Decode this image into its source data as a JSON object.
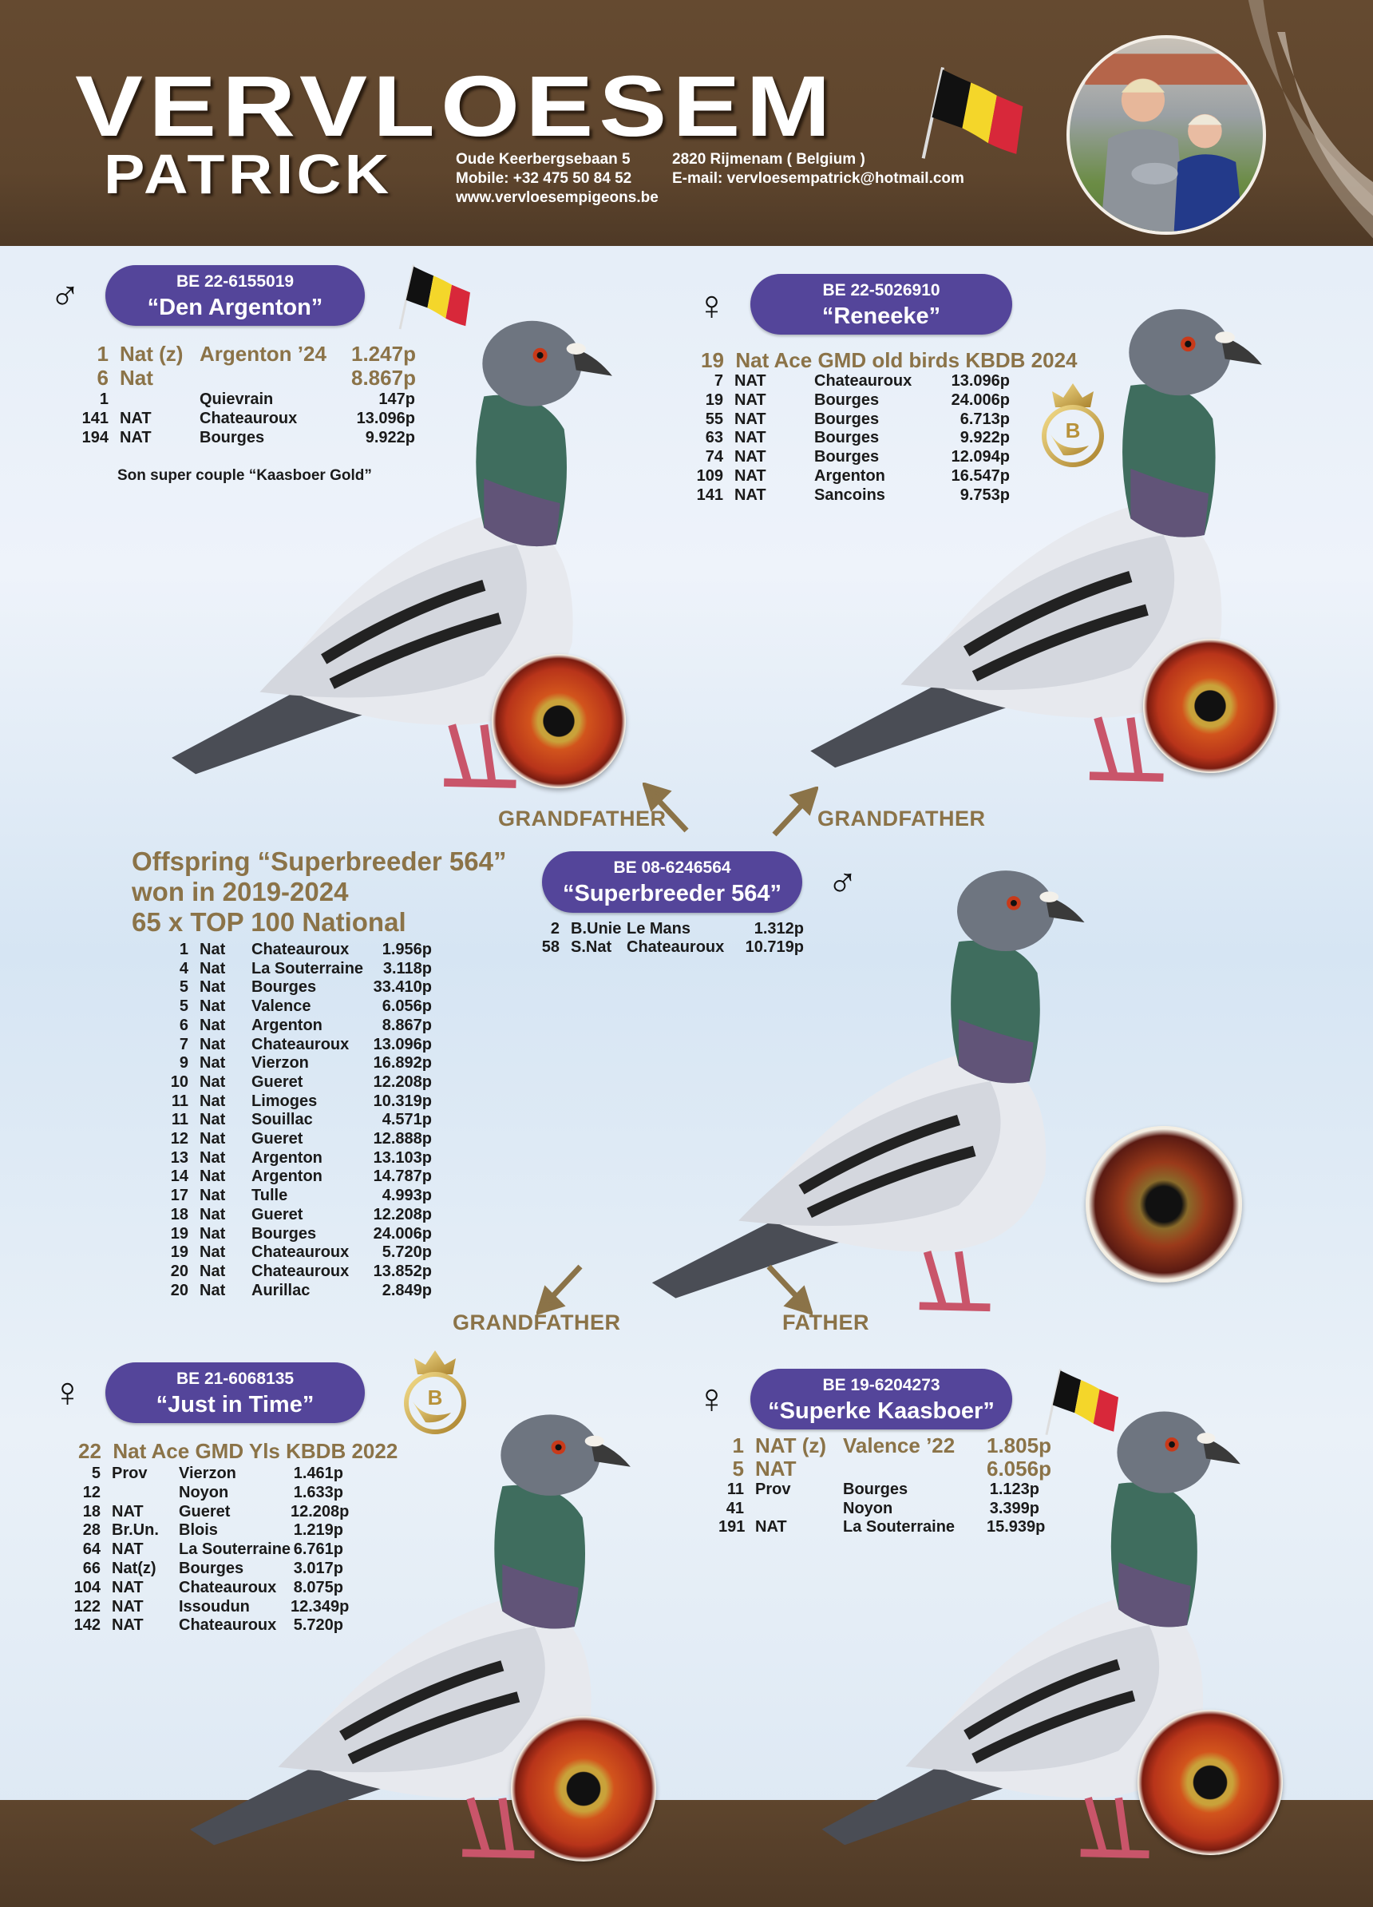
{
  "header": {
    "title": "VERVLOESEM",
    "subtitle": "PATRICK",
    "address": "Oude Keerbergsebaan 5",
    "city": "2820 Rijmenam ( Belgium )",
    "mobile": "Mobile: +32 475 50 84 52",
    "email": "E-mail: vervloesempatrick@hotmail.com",
    "website": "www.vervloesempigeons.be"
  },
  "colors": {
    "brown": "#5e452d",
    "purple": "#54459a",
    "gold": "#8b7348"
  },
  "pigeons": [
    {
      "sex": "♂",
      "ring": "BE 22-6155019",
      "name": "“Den Argenton”",
      "highlights": [
        [
          "1",
          "Nat (z)",
          "Argenton ’24",
          "1.247p"
        ],
        [
          "6",
          "Nat",
          "",
          "8.867p"
        ]
      ],
      "results": [
        [
          "1",
          "",
          "Quievrain",
          "147p"
        ],
        [
          "141",
          "NAT",
          "Chateauroux",
          "13.096p"
        ],
        [
          "194",
          "NAT",
          "Bourges",
          "9.922p"
        ]
      ],
      "note": "Son super couple “Kaasboer Gold”"
    },
    {
      "sex": "♀",
      "ring": "BE 22-5026910",
      "name": "“Reneeke”",
      "headline_rank": "19",
      "headline": "Nat Ace GMD old birds KBDB 2024",
      "results": [
        [
          "7",
          "NAT",
          "Chateauroux",
          "13.096p"
        ],
        [
          "19",
          "NAT",
          "Bourges",
          "24.006p"
        ],
        [
          "55",
          "NAT",
          "Bourges",
          "6.713p"
        ],
        [
          "63",
          "NAT",
          "Bourges",
          "9.922p"
        ],
        [
          "74",
          "NAT",
          "Bourges",
          "12.094p"
        ],
        [
          "109",
          "NAT",
          "Argenton",
          "16.547p"
        ],
        [
          "141",
          "NAT",
          "Sancoins",
          "9.753p"
        ]
      ]
    },
    {
      "sex": "♂",
      "ring": "BE 08-6246564",
      "name": "“Superbreeder 564”",
      "results": [
        [
          "2",
          "B.Unie",
          "Le Mans",
          "1.312p"
        ],
        [
          "58",
          "S.Nat",
          "Chateauroux",
          "10.719p"
        ]
      ]
    },
    {
      "sex": "♀",
      "ring": "BE 21-6068135",
      "name": "“Just in Time”",
      "headline_rank": "22",
      "headline": "Nat Ace GMD Yls KBDB 2022",
      "results": [
        [
          "5",
          "Prov",
          "Vierzon",
          "1.461p"
        ],
        [
          "12",
          "",
          "Noyon",
          "1.633p"
        ],
        [
          "18",
          "NAT",
          "Gueret",
          "12.208p"
        ],
        [
          "28",
          "Br.Un.",
          "Blois",
          "1.219p"
        ],
        [
          "64",
          "NAT",
          "La Souterraine",
          "6.761p"
        ],
        [
          "66",
          "Nat(z)",
          "Bourges",
          "3.017p"
        ],
        [
          "104",
          "NAT",
          "Chateauroux",
          "8.075p"
        ],
        [
          "122",
          "NAT",
          "Issoudun",
          "12.349p"
        ],
        [
          "142",
          "NAT",
          "Chateauroux",
          "5.720p"
        ]
      ]
    },
    {
      "sex": "♀",
      "ring": "BE 19-6204273",
      "name": "“Superke Kaasboer”",
      "highlights": [
        [
          "1",
          "NAT (z)",
          "Valence ’22",
          "1.805p"
        ],
        [
          "5",
          "NAT",
          "",
          "6.056p"
        ]
      ],
      "results": [
        [
          "11",
          "Prov",
          "Bourges",
          "1.123p"
        ],
        [
          "41",
          "",
          "Noyon",
          "3.399p"
        ],
        [
          "191",
          "NAT",
          "La Souterraine",
          "15.939p"
        ]
      ]
    }
  ],
  "relations": {
    "top_left": "GRANDFATHER",
    "top_right": "GRANDFATHER",
    "bottom_left": "GRANDFATHER",
    "bottom_right": "FATHER"
  },
  "offspring": {
    "line1": "Offspring “Superbreeder 564”",
    "line2": "won in 2019-2024",
    "line3": "65 x TOP 100 National",
    "results": [
      [
        "1",
        "Nat",
        "Chateauroux",
        "1.956p"
      ],
      [
        "4",
        "Nat",
        "La Souterraine",
        "3.118p"
      ],
      [
        "5",
        "Nat",
        "Bourges",
        "33.410p"
      ],
      [
        "5",
        "Nat",
        "Valence",
        "6.056p"
      ],
      [
        "6",
        "Nat",
        "Argenton",
        "8.867p"
      ],
      [
        "7",
        "Nat",
        "Chateauroux",
        "13.096p"
      ],
      [
        "9",
        "Nat",
        "Vierzon",
        "16.892p"
      ],
      [
        "10",
        "Nat",
        "Gueret",
        "12.208p"
      ],
      [
        "11",
        "Nat",
        "Limoges",
        "10.319p"
      ],
      [
        "11",
        "Nat",
        "Souillac",
        "4.571p"
      ],
      [
        "12",
        "Nat",
        "Gueret",
        "12.888p"
      ],
      [
        "13",
        "Nat",
        "Argenton",
        "13.103p"
      ],
      [
        "14",
        "Nat",
        "Argenton",
        "14.787p"
      ],
      [
        "17",
        "Nat",
        "Tulle",
        "4.993p"
      ],
      [
        "18",
        "Nat",
        "Gueret",
        "12.208p"
      ],
      [
        "19",
        "Nat",
        "Bourges",
        "24.006p"
      ],
      [
        "19",
        "Nat",
        "Chateauroux",
        "5.720p"
      ],
      [
        "20",
        "Nat",
        "Chateauroux",
        "13.852p"
      ],
      [
        "20",
        "Nat",
        "Aurillac",
        "2.849p"
      ]
    ]
  },
  "badge_letter": "B"
}
